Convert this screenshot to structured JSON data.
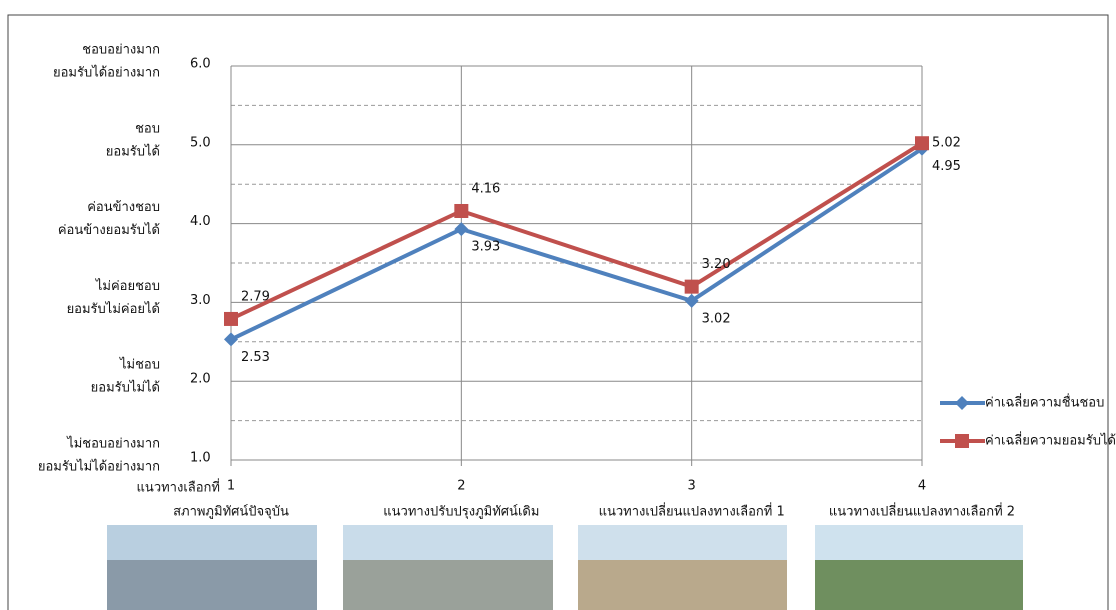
{
  "chart_data": {
    "type": "line",
    "x": [
      1,
      2,
      3,
      4
    ],
    "xlim": [
      1,
      4
    ],
    "xticks": [
      1,
      2,
      3,
      4
    ],
    "x_label_prefix": "แนวทางเลือกที่",
    "option_names": [
      "สภาพภูมิทัศน์ปัจจุบัน",
      "แนวทางปรับปรุงภูมิทัศน์เดิม",
      "แนวทางเปลี่ยนแปลงทางเลือกที่ 1",
      "แนวทางเปลี่ยนแปลงทางเลือกที่ 2"
    ],
    "ylim": [
      1,
      6
    ],
    "yticks": [
      {
        "value": 1,
        "label": "1.0"
      },
      {
        "value": 2,
        "label": "2.0"
      },
      {
        "value": 3,
        "label": "3.0"
      },
      {
        "value": 4,
        "label": "4.0"
      },
      {
        "value": 5,
        "label": "5.0"
      },
      {
        "value": 6,
        "label": "6.0"
      }
    ],
    "minor_yticks": [
      1.5,
      2.5,
      3.5,
      4.5,
      5.5
    ],
    "y_level_labels": [
      [
        "ไม่ชอบอย่างมาก",
        "ยอมรับไม่ได้อย่างมาก"
      ],
      [
        "ไม่ชอบ",
        "ยอมรับไม่ได้"
      ],
      [
        "ไม่ค่อยชอบ",
        "ยอมรับไม่ค่อยได้"
      ],
      [
        "ค่อนข้างชอบ",
        "ค่อนข้างยอมรับได้"
      ],
      [
        "ชอบ",
        "ยอมรับได้"
      ],
      [
        "ชอบอย่างมาก",
        "ยอมรับได้อย่างมาก"
      ]
    ],
    "grid": true,
    "legend": "right",
    "series": [
      {
        "name": "ค่าเฉลี่ยความชื่นชอบ",
        "color": "#4f81bd",
        "marker": "diamond",
        "values": [
          2.53,
          3.93,
          3.02,
          4.95
        ]
      },
      {
        "name": "ค่าเฉลี่ยความยอมรับได้",
        "color": "#c0504d",
        "marker": "square",
        "values": [
          2.79,
          4.16,
          3.2,
          5.02
        ],
        "value_labels": [
          "2.79",
          "4.16",
          "3.20",
          "5.02"
        ]
      }
    ]
  }
}
